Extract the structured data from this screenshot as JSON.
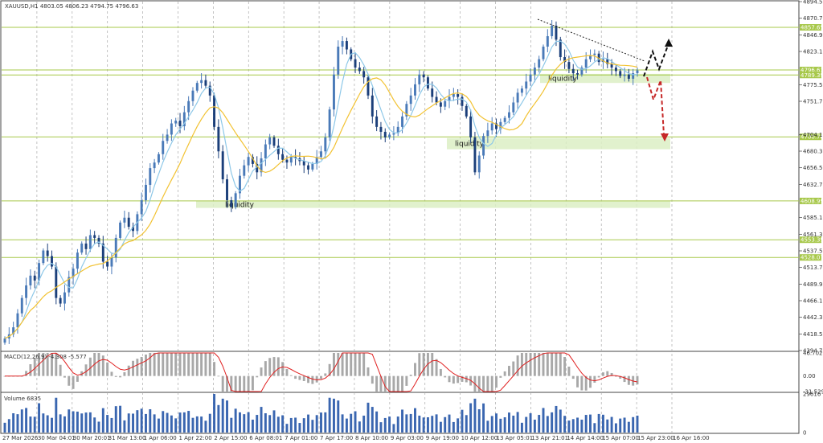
{
  "chart_data": {
    "type": "candlestick",
    "title": "XAUUSD,H1  4803.05 4806.23 4794.75 4796.63",
    "price_axis": {
      "ylim": [
        4394.7,
        4894.5
      ],
      "ticks": [
        "4894.50",
        "4870.70",
        "4846.90",
        "4823.10",
        "4775.50",
        "4751.70",
        "4704.10",
        "4680.30",
        "4656.50",
        "4632.70",
        "4585.10",
        "4561.30",
        "4537.50",
        "4513.70",
        "4489.90",
        "4466.10",
        "4442.30",
        "4418.50",
        "4394.70"
      ]
    },
    "levels": [
      {
        "price": 4857.65,
        "label": "4857.65"
      },
      {
        "price": 4796.63,
        "label": "4796.63"
      },
      {
        "price": 4789.39,
        "label": "4789.39"
      },
      {
        "price": 4700.76,
        "label": "4700.76"
      },
      {
        "price": 4608.99,
        "label": "4608.99"
      },
      {
        "price": 4553.39,
        "label": "4553.39"
      },
      {
        "price": 4528.07,
        "label": "4528.07"
      }
    ],
    "liquidity_zones": [
      {
        "label": "liquidity",
        "low": 4778,
        "high": 4791
      },
      {
        "label": "liquidity",
        "low": 4683,
        "high": 4699
      },
      {
        "label": "liquidity",
        "low": 4599,
        "high": 4609
      }
    ],
    "time_labels": [
      "27 Mar 2026",
      "30 Mar 04:01",
      "30 Mar 20:01",
      "31 Mar 13:00",
      "1 Apr 06:00",
      "1 Apr 22:00",
      "2 Apr 15:00",
      "6 Apr 08:01",
      "7 Apr 01:00",
      "7 Apr 17:00",
      "8 Apr 10:00",
      "9 Apr 03:00",
      "9 Apr 19:00",
      "10 Apr 12:00",
      "13 Apr 05:01",
      "13 Apr 21:01",
      "14 Apr 14:00",
      "15 Apr 07:00",
      "15 Apr 23:00",
      "16 Apr 16:00"
    ],
    "macd": {
      "label": "MACD(12,26,9) -4.308 -5.577",
      "ticks": [
        "46.702",
        "0.00",
        "-31.529"
      ],
      "ylim": [
        -31.529,
        46.702
      ]
    },
    "volume": {
      "label": "Volume 6835",
      "ticks": [
        "29616",
        "0"
      ],
      "ylim": [
        0,
        29616
      ]
    },
    "colors": {
      "bull": "#4a7ab8",
      "bear": "#1b3f7a",
      "ma_fast": "#8ec8e8",
      "ma_slow": "#f2c232",
      "level_line": "#a7c84a",
      "zone": "#dcefc4",
      "macd_signal": "#e02020",
      "macd_hist": "#a8a8a8",
      "volume": "#3a66b0"
    },
    "close_series": [
      4412,
      4418,
      4428,
      4448,
      4470,
      4488,
      4502,
      4495,
      4520,
      4538,
      4530,
      4515,
      4470,
      4462,
      4478,
      4500,
      4512,
      4535,
      4548,
      4540,
      4560,
      4556,
      4548,
      4522,
      4515,
      4528,
      4556,
      4578,
      4585,
      4572,
      4566,
      4590,
      4610,
      4632,
      4656,
      4664,
      4676,
      4695,
      4704,
      4720,
      4724,
      4716,
      4736,
      4752,
      4767,
      4778,
      4782,
      4774,
      4760,
      4715,
      4680,
      4640,
      4610,
      4600,
      4620,
      4645,
      4660,
      4672,
      4662,
      4650,
      4670,
      4690,
      4700,
      4688,
      4676,
      4668,
      4664,
      4672,
      4670,
      4666,
      4660,
      4654,
      4662,
      4672,
      4680,
      4700,
      4740,
      4790,
      4830,
      4838,
      4826,
      4812,
      4800,
      4795,
      4786,
      4760,
      4730,
      4715,
      4708,
      4700,
      4704,
      4706,
      4715,
      4730,
      4748,
      4760,
      4776,
      4790,
      4786,
      4770,
      4758,
      4750,
      4744,
      4752,
      4758,
      4762,
      4758,
      4745,
      4730,
      4700,
      4650,
      4674,
      4702,
      4710,
      4720,
      4712,
      4722,
      4728,
      4736,
      4750,
      4764,
      4770,
      4780,
      4790,
      4800,
      4812,
      4830,
      4845,
      4860,
      4840,
      4815,
      4808,
      4798,
      4792,
      4790,
      4800,
      4812,
      4818,
      4820,
      4808,
      4812,
      4805,
      4800,
      4795,
      4788,
      4790,
      4784,
      4792,
      4796
    ]
  }
}
